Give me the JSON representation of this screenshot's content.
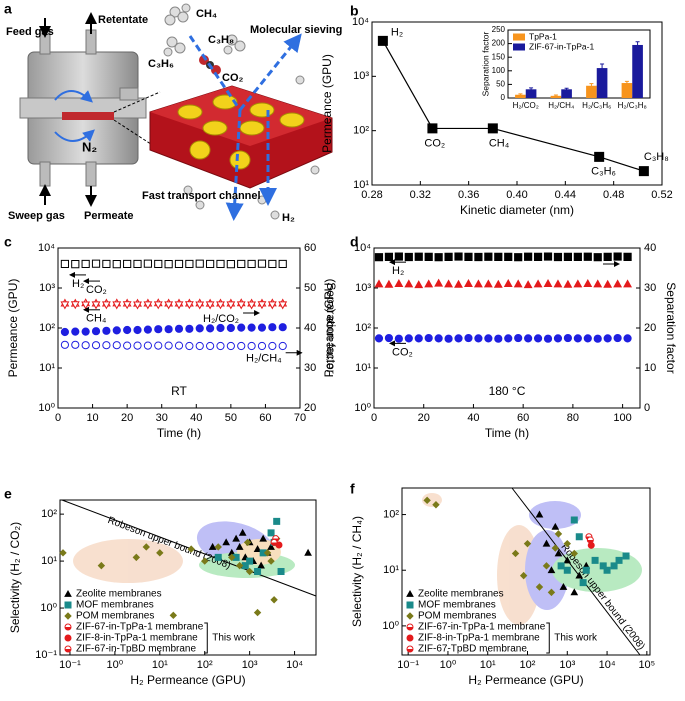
{
  "diagram": {
    "panel": "a",
    "labels": [
      "Feed gas",
      "Retentate",
      "CH₄",
      "C₃H₈",
      "C₃H₆",
      "CO₂",
      "Molecular sieving",
      "N₂",
      "Fast transport channel",
      "H₂",
      "Sweep gas",
      "Permeate"
    ]
  },
  "chart_data": [
    {
      "type": "line",
      "panel": "b",
      "xlabel": "Kinetic diameter (nm)",
      "ylabel": "Permeance (GPU)",
      "color": "#000000",
      "xlim": [
        0.28,
        0.52
      ],
      "xticks": [
        0.28,
        0.32,
        0.36,
        {
          "value": 0.4,
          "label": "0.40"
        },
        0.44,
        0.48,
        0.52
      ],
      "ylim": [
        10,
        10000
      ],
      "ylog": true,
      "yticks": [
        {
          "value": 10,
          "label": "10¹"
        },
        {
          "value": 100,
          "label": "10²"
        },
        {
          "value": 1000,
          "label": "10³"
        },
        {
          "value": 10000,
          "label": "10⁴"
        }
      ],
      "x": [
        0.289,
        0.33,
        0.38,
        0.468,
        0.505
      ],
      "values": [
        4500,
        110,
        110,
        33,
        18
      ],
      "point_labels": [
        "H₂",
        "CO₂",
        "CH₄",
        "C₃H₆",
        "C₃H₈"
      ]
    },
    {
      "type": "bar",
      "ylabel": "Separation factor",
      "legend": "upper left",
      "categories": [
        "H₂/CO₂",
        "H₂/CH₄",
        "H₂/C₃H₆",
        "H₂/C₃H₈"
      ],
      "ylim": [
        0,
        250
      ],
      "yticks": [
        0,
        50,
        100,
        150,
        200,
        250
      ],
      "series": [
        {
          "name": "TpPa-1",
          "color": "#f7941d",
          "values": [
            12,
            8,
            45,
            55
          ],
          "errors": [
            3,
            3,
            8,
            6
          ]
        },
        {
          "name": "ZIF-67-in-TpPa-1",
          "color": "#1a1a9c",
          "values": [
            32,
            32,
            110,
            195
          ],
          "errors": [
            5,
            4,
            15,
            12
          ]
        }
      ]
    },
    {
      "type": "dual",
      "panel": "c",
      "annotation": "RT",
      "xlabel": "Time (h)",
      "ylabel": "Permeance (GPU)",
      "y2label": "Separation factor",
      "xlim": [
        0,
        70
      ],
      "xticks": [
        0,
        10,
        20,
        30,
        40,
        50,
        60,
        70
      ],
      "ylim": [
        1,
        10000
      ],
      "ylog": true,
      "yticks": [
        {
          "value": 1,
          "label": "10⁰"
        },
        {
          "value": 10,
          "label": "10¹"
        },
        {
          "value": 100,
          "label": "10²"
        },
        {
          "value": 1000,
          "label": "10³"
        },
        {
          "value": 10000,
          "label": "10⁴"
        }
      ],
      "y2lim": [
        20,
        60
      ],
      "y2ticks": [
        20,
        30,
        40,
        50,
        60
      ],
      "x": [
        2,
        5,
        8,
        11,
        14,
        17,
        20,
        23,
        26,
        29,
        32,
        35,
        38,
        41,
        44,
        47,
        50,
        53,
        56,
        59,
        62,
        65
      ],
      "series": [
        {
          "name": "H₂",
          "color": "#000000",
          "marker": "square",
          "filled": false,
          "values": [
            4000,
            3950,
            4000,
            4050,
            4000,
            3950,
            4000,
            4000,
            4050,
            4000,
            3950,
            4000,
            4000,
            4050,
            4000,
            4000,
            3950,
            4000,
            4000,
            4050,
            4000,
            4000
          ]
        },
        {
          "name": "CO₂",
          "color": "#e41a1c",
          "marker": "triangle",
          "filled": false,
          "values": [
            420,
            415,
            425,
            420,
            418,
            422,
            420,
            415,
            420,
            425,
            420,
            418,
            420,
            422,
            415,
            420,
            420,
            425,
            418,
            420,
            422,
            420
          ]
        },
        {
          "name": "CH₄",
          "color": "#e41a1c",
          "marker": "triangle-down",
          "filled": false,
          "values": [
            380,
            385,
            378,
            380,
            382,
            380,
            385,
            378,
            380,
            382,
            380,
            380,
            385,
            378,
            380,
            382,
            380,
            380,
            378,
            385,
            380,
            380
          ]
        },
        {
          "name": "H₂/CO₂",
          "color": "#1f1fe0",
          "marker": "circle",
          "filled": true,
          "axis": "y2",
          "values": [
            39.0,
            39.1,
            39.1,
            39.2,
            39.3,
            39.4,
            39.5,
            39.5,
            39.6,
            39.7,
            39.7,
            39.8,
            39.8,
            39.9,
            39.9,
            40.0,
            40.0,
            40.1,
            40.1,
            40.1,
            40.2,
            40.2
          ]
        },
        {
          "name": "H₂/CH₄",
          "color": "#1f1fe0",
          "marker": "circle",
          "filled": false,
          "axis": "y2",
          "values": [
            35.8,
            35.8,
            35.7,
            35.7,
            35.7,
            35.7,
            35.6,
            35.6,
            35.6,
            35.6,
            35.6,
            35.6,
            35.5,
            35.5,
            35.5,
            35.5,
            35.5,
            35.5,
            35.5,
            35.5,
            35.5,
            35.5
          ]
        }
      ]
    },
    {
      "type": "dual",
      "panel": "d",
      "annotation": "180 °C",
      "xlabel": "Time (h)",
      "ylabel": "Permeance (GPU)",
      "y2label": "Separation factor",
      "xlim": [
        0,
        107
      ],
      "xticks": [
        0,
        20,
        40,
        60,
        80,
        100
      ],
      "ylim": [
        1,
        10000
      ],
      "ylog": true,
      "yticks": [
        {
          "value": 1,
          "label": "10⁰"
        },
        {
          "value": 10,
          "label": "10¹"
        },
        {
          "value": 100,
          "label": "10²"
        },
        {
          "value": 1000,
          "label": "10³"
        },
        {
          "value": 10000,
          "label": "10⁴"
        }
      ],
      "y2lim": [
        0,
        40
      ],
      "y2ticks": [
        0,
        10,
        20,
        30,
        40
      ],
      "x": [
        2,
        6,
        10,
        14,
        18,
        22,
        26,
        30,
        34,
        38,
        42,
        46,
        50,
        54,
        58,
        62,
        66,
        70,
        74,
        78,
        82,
        86,
        90,
        94,
        98,
        102
      ],
      "series": [
        {
          "name": "H₂",
          "color": "#000000",
          "marker": "square",
          "filled": true,
          "values": [
            5900,
            6000,
            6100,
            5950,
            6050,
            6000,
            5900,
            6000,
            6100,
            6000,
            5950,
            6050,
            6000,
            6000,
            5900,
            6050,
            6000,
            6100,
            5950,
            6000,
            6000,
            6050,
            5900,
            6000,
            6100,
            6000
          ]
        },
        {
          "color": "#e41a1c",
          "marker": "triangle",
          "filled": true,
          "axis": "y2",
          "values": [
            31.0,
            30.9,
            31.1,
            31.0,
            30.8,
            31.0,
            31.2,
            31.0,
            30.9,
            31.1,
            31.0,
            31.0,
            30.9,
            31.1,
            31.0,
            30.8,
            31.0,
            31.1,
            31.0,
            30.9,
            31.0,
            31.1,
            31.0,
            30.9,
            31.0,
            31.0
          ]
        },
        {
          "name": "CO₂",
          "color": "#1f1fe0",
          "marker": "circle",
          "filled": true,
          "values": [
            55,
            56,
            54,
            55,
            55,
            56,
            55,
            54,
            55,
            56,
            55,
            55,
            54,
            55,
            56,
            55,
            55,
            54,
            55,
            56,
            55,
            55,
            54,
            55,
            56,
            55
          ]
        }
      ]
    },
    {
      "type": "scatter",
      "panel": "e",
      "xlabel": "H₂ Permeance (GPU)",
      "ylabel": "Selectivity (H₂ / CO₂)",
      "legend": "lower left",
      "note": "This work",
      "curve_label": "Robeson upper bound (2008)",
      "xlim": [
        0.06,
        30000
      ],
      "xlog": true,
      "xticks": [
        {
          "value": 0.1,
          "label": "10⁻¹"
        },
        {
          "value": 1,
          "label": "10⁰"
        },
        {
          "value": 10,
          "label": "10¹"
        },
        {
          "value": 100,
          "label": "10²"
        },
        {
          "value": 1000,
          "label": "10³"
        },
        {
          "value": 10000,
          "label": "10⁴"
        }
      ],
      "ylim": [
        0.1,
        200
      ],
      "ylog": true,
      "yticks": [
        {
          "value": 0.1,
          "label": "10⁻¹"
        },
        {
          "value": 1,
          "label": "10⁰"
        },
        {
          "value": 10,
          "label": "10¹"
        },
        {
          "value": 100,
          "label": "10²"
        }
      ],
      "series": [
        {
          "name": "Zeolite membranes",
          "color": "#000000",
          "marker": "triangle",
          "filled": true,
          "x": [
            150,
            300,
            400,
            500,
            600,
            800,
            1000,
            1200,
            1500,
            2000,
            2500,
            3000,
            700,
            20000,
            1800
          ],
          "values": [
            20,
            25,
            15,
            30,
            20,
            12,
            25,
            10,
            18,
            30,
            15,
            20,
            40,
            15,
            8
          ]
        },
        {
          "name": "MOF membranes",
          "color": "#1a8a8a",
          "marker": "square",
          "filled": true,
          "x": [
            4000,
            3000,
            2000,
            1000,
            800,
            500,
            1500,
            5000,
            200,
            3500
          ],
          "values": [
            70,
            40,
            15,
            10,
            8,
            12,
            6,
            6,
            12,
            25
          ]
        },
        {
          "name": "POM membranes",
          "color": "#7a7a1a",
          "marker": "diamond",
          "filled": true,
          "x": [
            0.07,
            0.5,
            3,
            5,
            10,
            20,
            50,
            100,
            200,
            400,
            600,
            1000,
            1500,
            2500,
            3000,
            4000,
            3500,
            900
          ],
          "values": [
            15,
            8,
            12,
            20,
            15,
            0.7,
            18,
            10,
            20,
            12,
            8,
            6,
            0.8,
            15,
            10,
            30,
            1.5,
            25
          ]
        },
        {
          "name": "ZIF-67-in-TpPa-1 membrane",
          "color": "#e41a1c",
          "marker": "circle-half",
          "filled": true,
          "x": [
            3800
          ],
          "values": [
            30
          ]
        },
        {
          "name": "ZIF-8-in-TpPa-1 membrane",
          "color": "#e41a1c",
          "marker": "circle",
          "filled": true,
          "x": [
            4500
          ],
          "values": [
            22
          ]
        },
        {
          "name": "ZIF-67-in-TpBD membrane",
          "color": "#e41a1c",
          "marker": "circle-half",
          "filled": true,
          "x": [
            3500
          ],
          "values": [
            25
          ]
        }
      ]
    },
    {
      "type": "scatter",
      "panel": "f",
      "xlabel": "H₂ Permeance (GPU)",
      "ylabel": "Selectivity (H₂ / CH₄)",
      "legend": "lower left",
      "note": "This work",
      "curve_label": "Robeson upper bound (2008)",
      "xlim": [
        0.07,
        120000
      ],
      "xlog": true,
      "xticks": [
        {
          "value": 0.1,
          "label": "10⁻¹"
        },
        {
          "value": 1,
          "label": "10⁰"
        },
        {
          "value": 10,
          "label": "10¹"
        },
        {
          "value": 100,
          "label": "10²"
        },
        {
          "value": 1000,
          "label": "10³"
        },
        {
          "value": 10000,
          "label": "10⁴"
        },
        {
          "value": 100000,
          "label": "10⁵"
        }
      ],
      "ylim": [
        0.3,
        300
      ],
      "ylog": true,
      "yticks": [
        {
          "value": 1,
          "label": "10⁰"
        },
        {
          "value": 10,
          "label": "10¹"
        },
        {
          "value": 100,
          "label": "10²"
        }
      ],
      "series": [
        {
          "name": "Zeolite membranes",
          "color": "#000000",
          "marker": "triangle",
          "filled": true,
          "x": [
            200,
            500,
            300,
            1000,
            2000,
            800,
            1500,
            3000,
            600,
            400
          ],
          "values": [
            100,
            60,
            30,
            15,
            8,
            5,
            4,
            12,
            20,
            10
          ]
        },
        {
          "name": "MOF membranes",
          "color": "#1a8a8a",
          "marker": "square",
          "filled": true,
          "x": [
            1500,
            2000,
            3000,
            5000,
            8000,
            10000,
            15000,
            20000,
            700,
            1000,
            2500,
            30000
          ],
          "values": [
            80,
            40,
            10,
            15,
            12,
            10,
            12,
            15,
            12,
            10,
            6,
            18
          ]
        },
        {
          "name": "POM membranes",
          "color": "#7a7a1a",
          "marker": "diamond",
          "filled": true,
          "x": [
            0.3,
            0.5,
            50,
            80,
            100,
            200,
            300,
            500,
            600,
            1000,
            1500,
            400
          ],
          "values": [
            180,
            150,
            20,
            8,
            30,
            5,
            12,
            25,
            45,
            30,
            20,
            4
          ]
        },
        {
          "name": "ZIF-67-in-TpPa-1 membrane",
          "color": "#e41a1c",
          "marker": "circle-half",
          "filled": true,
          "x": [
            3500
          ],
          "values": [
            40
          ]
        },
        {
          "name": "ZIF-8-in-TpPa-1 membrane",
          "color": "#e41a1c",
          "marker": "circle",
          "filled": true,
          "x": [
            4000
          ],
          "values": [
            28
          ]
        },
        {
          "name": "ZIF-67-TpBD membrane",
          "color": "#e41a1c",
          "marker": "circle-half",
          "filled": true,
          "x": [
            3800
          ],
          "values": [
            35
          ]
        }
      ]
    }
  ]
}
